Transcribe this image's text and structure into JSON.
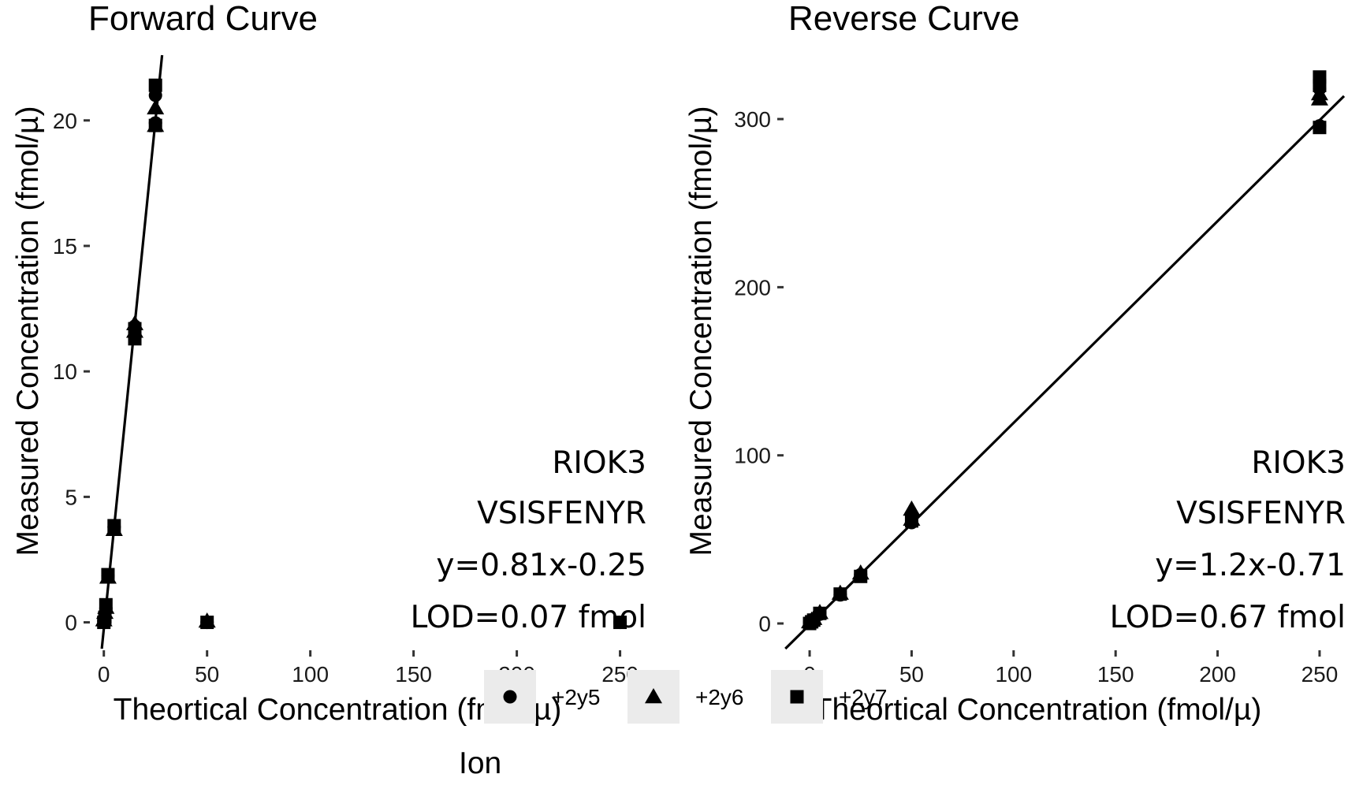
{
  "chart_data": [
    {
      "type": "scatter",
      "title": "Forward Curve",
      "xlabel": "Theortical Concentration (fmol/µ)",
      "ylabel": "Measured Concentration (fmol/µ)",
      "xlim": [
        -6,
        262
      ],
      "ylim": [
        -1.05,
        22.6
      ],
      "xticks": [
        0,
        50,
        100,
        150,
        200,
        250
      ],
      "yticks": [
        0,
        5,
        10,
        15,
        20
      ],
      "grid": false,
      "fit": {
        "slope": 0.81,
        "intercept": -0.25
      },
      "annotations": [
        "RIOK3",
        "VSISFENYR",
        "y=0.81x-0.25",
        "LOD=0.07 fmol"
      ],
      "series": [
        {
          "name": "+2y5",
          "shape": "circle",
          "points": [
            [
              0,
              0.05
            ],
            [
              0.5,
              0.3
            ],
            [
              1,
              0.55
            ],
            [
              2,
              1.85
            ],
            [
              5,
              3.8
            ],
            [
              15,
              11.8
            ],
            [
              25,
              21.0
            ],
            [
              25,
              19.9
            ],
            [
              50,
              0.0
            ],
            [
              250,
              0.0
            ]
          ]
        },
        {
          "name": "+2y6",
          "shape": "triangle",
          "points": [
            [
              0,
              0.1
            ],
            [
              0.5,
              0.4
            ],
            [
              1,
              0.6
            ],
            [
              2,
              1.8
            ],
            [
              5,
              3.7
            ],
            [
              15,
              11.9
            ],
            [
              15,
              11.6
            ],
            [
              25,
              20.5
            ],
            [
              25,
              19.8
            ],
            [
              50,
              0.05
            ]
          ]
        },
        {
          "name": "+2y7",
          "shape": "square",
          "points": [
            [
              0,
              0.0
            ],
            [
              0.5,
              0.2
            ],
            [
              1,
              0.7
            ],
            [
              2,
              1.9
            ],
            [
              5,
              3.85
            ],
            [
              15,
              11.3
            ],
            [
              15,
              11.7
            ],
            [
              25,
              21.4
            ],
            [
              25,
              19.8
            ],
            [
              50,
              0.0
            ],
            [
              250,
              0.0
            ]
          ]
        }
      ]
    },
    {
      "type": "scatter",
      "title": "Reverse Curve",
      "xlabel": "Theortical Concentration (fmol/µ)",
      "ylabel": "Measured Concentration (fmol/µ)",
      "xlim": [
        -12,
        262
      ],
      "ylim": [
        -15,
        338
      ],
      "xticks": [
        0,
        50,
        100,
        150,
        200,
        250
      ],
      "yticks": [
        0,
        100,
        200,
        300
      ],
      "grid": false,
      "fit": {
        "slope": 1.2,
        "intercept": -0.71
      },
      "annotations": [
        "RIOK3",
        "VSISFENYR",
        "y=1.2x-0.71",
        "LOD=0.67 fmol"
      ],
      "series": [
        {
          "name": "+2y5",
          "shape": "circle",
          "points": [
            [
              0,
              0.5
            ],
            [
              1,
              1.5
            ],
            [
              2,
              2.5
            ],
            [
              5,
              5.5
            ],
            [
              15,
              17
            ],
            [
              25,
              29
            ],
            [
              50,
              60
            ],
            [
              250,
              318
            ],
            [
              250,
              296
            ]
          ]
        },
        {
          "name": "+2y6",
          "shape": "triangle",
          "points": [
            [
              0,
              1
            ],
            [
              1,
              2
            ],
            [
              2,
              3
            ],
            [
              5,
              6.5
            ],
            [
              15,
              18
            ],
            [
              25,
              30
            ],
            [
              50,
              68
            ],
            [
              50,
              62
            ],
            [
              250,
              315
            ],
            [
              250,
              312
            ]
          ]
        },
        {
          "name": "+2y7",
          "shape": "square",
          "points": [
            [
              0,
              0
            ],
            [
              1,
              1
            ],
            [
              2,
              2
            ],
            [
              5,
              6
            ],
            [
              15,
              17.5
            ],
            [
              25,
              28
            ],
            [
              50,
              61
            ],
            [
              250,
              325
            ],
            [
              250,
              320
            ],
            [
              250,
              295
            ]
          ]
        }
      ]
    }
  ],
  "legend": {
    "title": "Ion",
    "position": "bottom",
    "items": [
      {
        "label": "+2y5",
        "shape": "circle"
      },
      {
        "label": "+2y6",
        "shape": "triangle"
      },
      {
        "label": "+2y7",
        "shape": "square"
      }
    ],
    "key_background": "#ebebeb"
  },
  "colors": {
    "points": "#000000",
    "line": "#000000",
    "text": "#000000"
  }
}
